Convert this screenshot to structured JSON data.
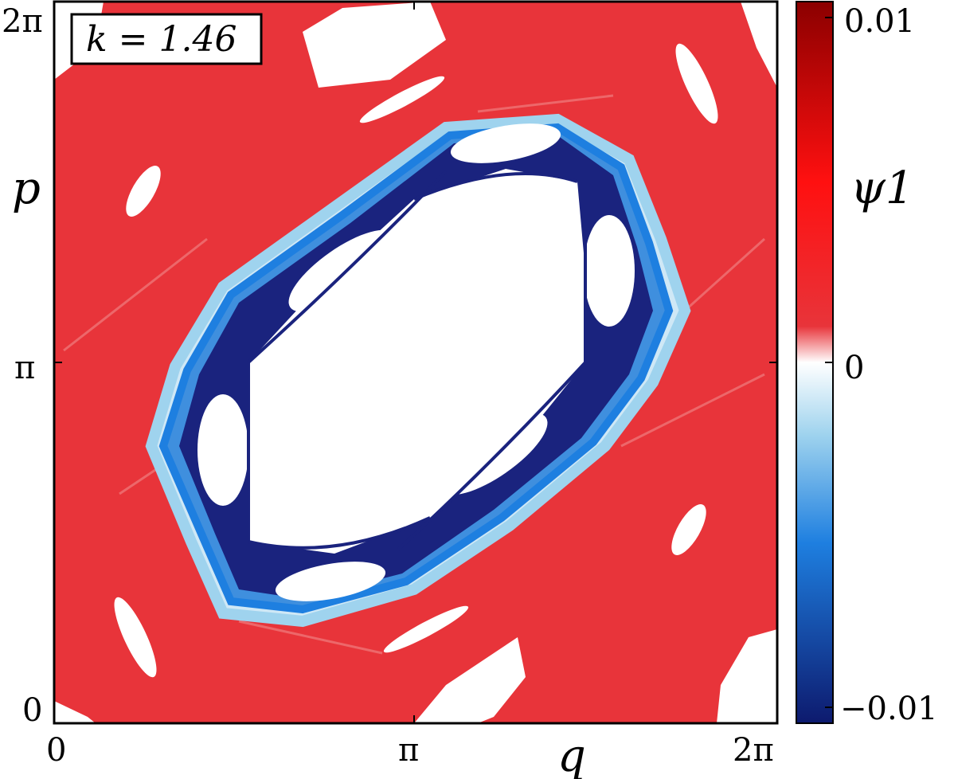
{
  "chart_data": {
    "type": "heatmap",
    "title": "",
    "annotation": "k = 1.46",
    "xlabel": "q",
    "ylabel": "p",
    "xlim": [
      0,
      6.2832
    ],
    "ylim": [
      0,
      6.2832
    ],
    "x_ticks": [
      {
        "value": 0,
        "label": "0"
      },
      {
        "value": 3.1416,
        "label": "π"
      },
      {
        "value": 6.2832,
        "label": "2π"
      }
    ],
    "y_ticks": [
      {
        "value": 0,
        "label": "0"
      },
      {
        "value": 3.1416,
        "label": "π"
      },
      {
        "value": 6.2832,
        "label": "2π"
      }
    ],
    "colorbar": {
      "label": "ψ1",
      "min": -0.01,
      "max": 0.01,
      "ticks": [
        {
          "value": 0.01,
          "label": "0.01"
        },
        {
          "value": 0,
          "label": "0"
        },
        {
          "value": -0.01,
          "label": "−0.01"
        }
      ]
    },
    "regions": {
      "chaotic_sea_color": "#e8343a",
      "regular_island_color": "#ffffff",
      "boundary_color": "#1a237e",
      "central_island_center": [
        3.1416,
        3.1416
      ]
    }
  }
}
